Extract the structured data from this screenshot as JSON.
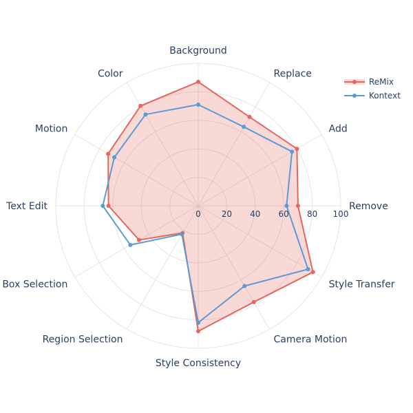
{
  "chart_data": {
    "type": "radar",
    "axes": [
      "Background",
      "Replace",
      "Add",
      "Remove",
      "Style Transfer",
      "Camera Motion",
      "Style Consistency",
      "Region Selection",
      "Box Selection",
      "Text Edit",
      "Motion",
      "Color"
    ],
    "radial_range": [
      0,
      100
    ],
    "radial_ticks": [
      "0",
      "20",
      "40",
      "60",
      "80",
      "100"
    ],
    "grid": true,
    "legend_position": "top-right",
    "series": [
      {
        "name": "ReMix",
        "values": [
          87,
          72,
          80,
          70,
          93,
          78,
          88,
          22,
          48,
          63,
          73,
          81
        ],
        "color": "#e4665c",
        "fill": "rgba(228,102,92,0.25)"
      },
      {
        "name": "Kontext",
        "values": [
          71,
          64,
          76,
          62,
          89,
          65,
          82,
          23,
          55,
          67,
          68,
          74
        ],
        "color": "#5b9bd5",
        "fill": "none"
      }
    ]
  }
}
